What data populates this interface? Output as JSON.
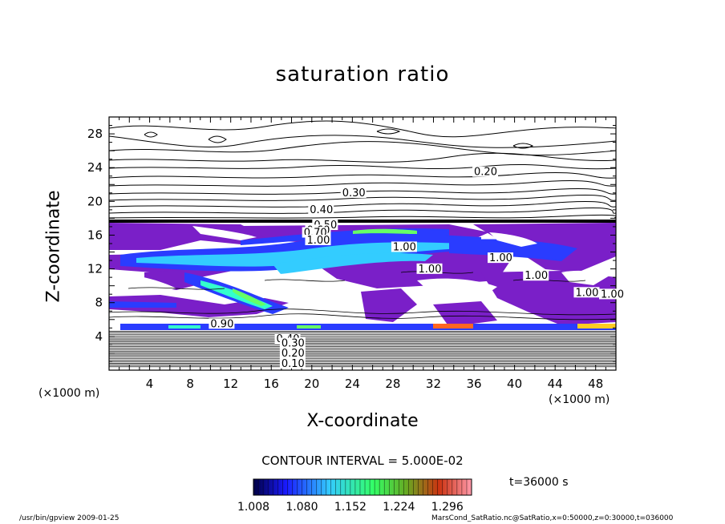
{
  "chart_data": {
    "type": "heatmap",
    "title": "saturation ratio",
    "xlabel": "X-coordinate",
    "ylabel": "Z-coordinate",
    "x_unit_left": "(×1000 m)",
    "x_unit_right": "(×1000 m)",
    "xlim": [
      0,
      50
    ],
    "ylim": [
      0,
      30
    ],
    "x_ticks": [
      4,
      8,
      12,
      16,
      20,
      24,
      28,
      32,
      36,
      40,
      44,
      48
    ],
    "y_ticks": [
      4,
      8,
      12,
      16,
      20,
      24,
      28
    ],
    "contour_labels": [
      "0.20",
      "0.30",
      "0.40",
      "0.50",
      "0.60",
      "0.70",
      "1.00",
      "1.00",
      "1.00",
      "1.00",
      "1.00",
      "1.00",
      "1.00",
      "0.90",
      "0.40",
      "0.30",
      "0.20",
      "0.10"
    ],
    "contour_interval": "CONTOUR INTERVAL = 5.000E-02",
    "colorbar_ticks": [
      "1.008",
      "1.080",
      "1.152",
      "1.224",
      "1.296"
    ],
    "colorbar_range": [
      1.008,
      1.332
    ],
    "colors": [
      "#000066",
      "#1a1aff",
      "#33ccff",
      "#33ff99",
      "#66ff33",
      "#ffcc00",
      "#ff3300",
      "#cc0000"
    ],
    "fill_color": "#7a1fc8"
  },
  "time_label": "t=36000 s",
  "footer_left": "/usr/bin/gpview   2009-01-25",
  "footer_right": "MarsCond_SatRatio.nc@SatRatio,x=0:50000,z=0:30000,t=036000"
}
